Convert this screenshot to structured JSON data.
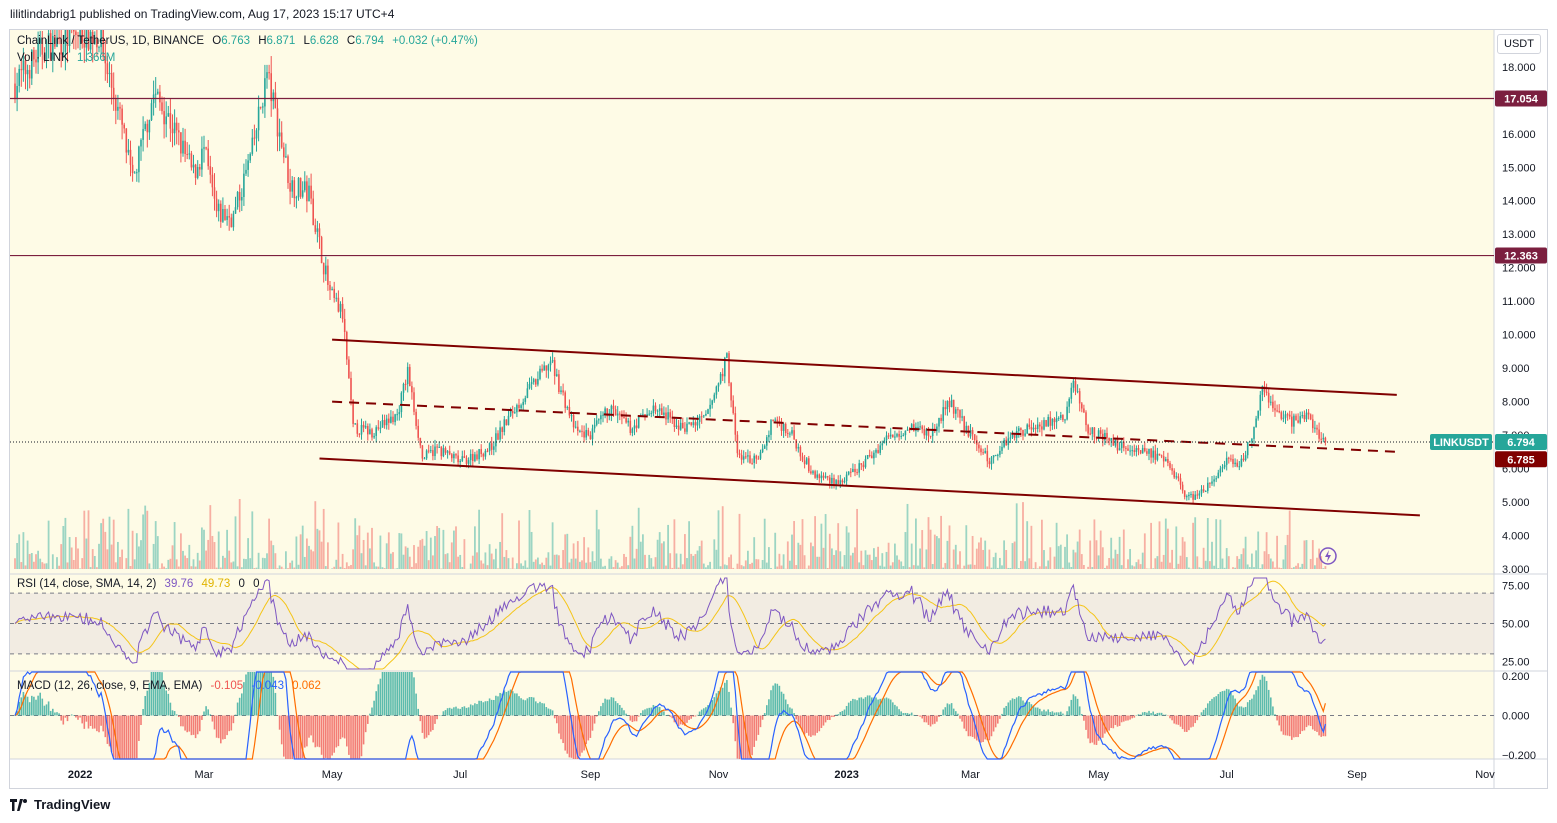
{
  "header": {
    "published": "lilitlindabrig1 published on TradingView.com, Aug 17, 2023 15:17 UTC+4"
  },
  "footer": {
    "brand": "TradingView"
  },
  "unit_label": "USDT",
  "legend": {
    "symbol": "ChainLink / TetherUS, 1D, BINANCE",
    "o_label": "O",
    "o": "6.763",
    "h_label": "H",
    "h": "6.871",
    "l_label": "L",
    "l": "6.628",
    "c_label": "C",
    "c": "6.794",
    "change": "+0.032 (+0.47%)",
    "vol_label": "Vol · LINK",
    "vol": "1.366M"
  },
  "rsi_legend": {
    "label": "RSI (14, close, SMA, 14, 2)",
    "rsi": "39.76",
    "sma": "49.73",
    "z1": "0",
    "z2": "0"
  },
  "macd_legend": {
    "label": "MACD (12, 26, close, 9, EMA, EMA)",
    "hist": "-0.105",
    "macd": "-0.043",
    "signal": "0.062"
  },
  "colors": {
    "background": "#fefbe6",
    "up": "#26a69a",
    "down": "#ef5350",
    "channel": "#800000",
    "hline": "#7b1f3f",
    "rsi": "#7e57c2",
    "rsi_ma": "#f5c518",
    "macd": "#2962ff",
    "signal": "#ff6d00"
  },
  "chart_data": [
    {
      "type": "candlestick",
      "title": "ChainLink / TetherUS, 1D, BINANCE",
      "x_ticks": [
        "2022",
        "Mar",
        "May",
        "Jul",
        "Sep",
        "Nov",
        "2023",
        "Mar",
        "May",
        "Jul",
        "Sep",
        "Nov"
      ],
      "y_ticks": [
        "18.000",
        "17.000",
        "16.000",
        "15.000",
        "14.000",
        "13.000",
        "12.000",
        "11.000",
        "10.000",
        "9.000",
        "8.000",
        "7.000",
        "6.000",
        "5.000",
        "4.000",
        "3.000"
      ],
      "ylim": [
        3,
        19.1
      ],
      "horizontal_levels": [
        17.054,
        12.363
      ],
      "horizontal_level_labels": [
        "17.054",
        "12.363"
      ],
      "last_price": 6.794,
      "last_price_label": "LINKUSDT",
      "last_price_text": "6.794",
      "trendline_value": 6.785,
      "trendline_value_text": "6.785",
      "channel": {
        "upper": [
          [
            "2022-05-01",
            9.85
          ],
          [
            "2023-09-20",
            8.2
          ]
        ],
        "middle": [
          [
            "2022-05-01",
            8.0
          ],
          [
            "2023-09-20",
            6.5
          ]
        ],
        "lower": [
          [
            "2022-04-25",
            6.3
          ],
          [
            "2023-10-01",
            4.6
          ]
        ]
      },
      "closes": [
        [
          "2021-12-01",
          17.5
        ],
        [
          "2021-12-15",
          18.6
        ],
        [
          "2022-01-01",
          19.0
        ],
        [
          "2022-01-10",
          18.9
        ],
        [
          "2022-01-21",
          16.2
        ],
        [
          "2022-01-26",
          14.5
        ],
        [
          "2022-02-05",
          17.2
        ],
        [
          "2022-02-12",
          16.5
        ],
        [
          "2022-02-24",
          14.8
        ],
        [
          "2022-03-01",
          15.5
        ],
        [
          "2022-03-07",
          13.6
        ],
        [
          "2022-03-15",
          13.5
        ],
        [
          "2022-03-24",
          15.5
        ],
        [
          "2022-03-31",
          17.8
        ],
        [
          "2022-04-05",
          16.3
        ],
        [
          "2022-04-11",
          14.5
        ],
        [
          "2022-04-20",
          14.2
        ],
        [
          "2022-04-30",
          11.2
        ],
        [
          "2022-05-06",
          10.6
        ],
        [
          "2022-05-11",
          7.2
        ],
        [
          "2022-05-20",
          7.1
        ],
        [
          "2022-06-01",
          7.6
        ],
        [
          "2022-06-06",
          8.9
        ],
        [
          "2022-06-13",
          6.3
        ],
        [
          "2022-06-20",
          6.6
        ],
        [
          "2022-07-01",
          6.2
        ],
        [
          "2022-07-15",
          6.6
        ],
        [
          "2022-07-26",
          7.7
        ],
        [
          "2022-08-06",
          8.6
        ],
        [
          "2022-08-13",
          9.2
        ],
        [
          "2022-08-25",
          7.1
        ],
        [
          "2022-09-01",
          7.0
        ],
        [
          "2022-09-10",
          7.8
        ],
        [
          "2022-09-20",
          7.2
        ],
        [
          "2022-10-01",
          7.8
        ],
        [
          "2022-10-15",
          7.2
        ],
        [
          "2022-10-26",
          7.5
        ],
        [
          "2022-11-05",
          9.3
        ],
        [
          "2022-11-10",
          6.4
        ],
        [
          "2022-11-20",
          6.2
        ],
        [
          "2022-11-27",
          7.5
        ],
        [
          "2022-12-05",
          7.1
        ],
        [
          "2022-12-16",
          5.8
        ],
        [
          "2022-12-30",
          5.6
        ],
        [
          "2023-01-10",
          6.2
        ],
        [
          "2023-01-20",
          6.9
        ],
        [
          "2023-02-01",
          7.3
        ],
        [
          "2023-02-10",
          7.0
        ],
        [
          "2023-02-19",
          8.0
        ],
        [
          "2023-02-28",
          7.1
        ],
        [
          "2023-03-10",
          6.2
        ],
        [
          "2023-03-20",
          7.0
        ],
        [
          "2023-04-01",
          7.3
        ],
        [
          "2023-04-15",
          7.5
        ],
        [
          "2023-04-19",
          8.6
        ],
        [
          "2023-04-26",
          7.2
        ],
        [
          "2023-05-10",
          6.7
        ],
        [
          "2023-05-25",
          6.5
        ],
        [
          "2023-06-05",
          6.0
        ],
        [
          "2023-06-12",
          5.1
        ],
        [
          "2023-06-20",
          5.3
        ],
        [
          "2023-07-01",
          6.2
        ],
        [
          "2023-07-07",
          6.0
        ],
        [
          "2023-07-14",
          7.2
        ],
        [
          "2023-07-18",
          8.3
        ],
        [
          "2023-07-25",
          7.7
        ],
        [
          "2023-08-01",
          7.4
        ],
        [
          "2023-08-08",
          7.6
        ],
        [
          "2023-08-17",
          6.79
        ]
      ]
    },
    {
      "type": "line",
      "title": "RSI (14, close, SMA, 14, 2)",
      "y_ticks": [
        "75.00",
        "50.00",
        "25.00"
      ],
      "band": [
        30,
        70
      ],
      "ylim": [
        20,
        80
      ],
      "last_rsi": 39.76,
      "last_rsi_ma": 49.73
    },
    {
      "type": "bar",
      "title": "MACD (12, 26, close, 9, EMA, EMA)",
      "y_ticks": [
        "0.200",
        "0.000",
        "−0.200"
      ],
      "ylim": [
        -0.22,
        0.22
      ],
      "last_histogram": -0.105,
      "last_macd": -0.043,
      "last_signal": 0.062
    }
  ]
}
